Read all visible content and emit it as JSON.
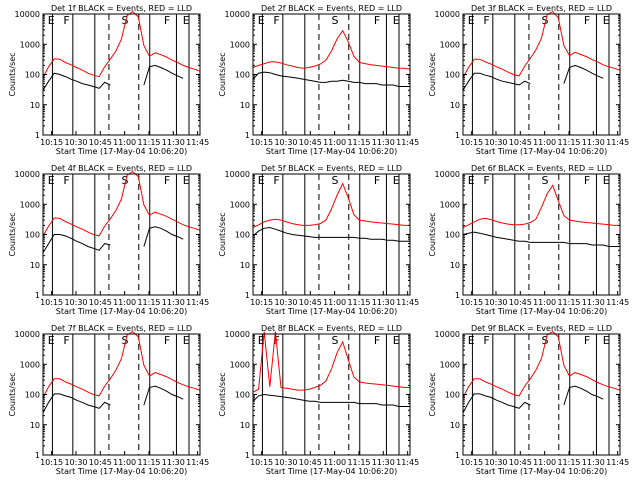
{
  "chart_data": {
    "type": "line",
    "grid_of_panels": "3x3",
    "shared": {
      "xlabel": "Start Time (17-May-04 10:06:20)",
      "ylabel": "Counts/sec",
      "xticks": [
        "10:15",
        "10:30",
        "10:45",
        "11:00",
        "11:15",
        "11:30",
        "11:45"
      ],
      "yticks": [
        "1",
        "10",
        "100",
        "1000",
        "10000"
      ],
      "ylim": [
        1,
        10000
      ],
      "y_scale": "log",
      "x_range_minutes_after_10": [
        8,
        47
      ],
      "series_colors": {
        "events": "#000000",
        "lld": "#ff0000"
      },
      "vertical_lines_solid_minutes": [
        13,
        23,
        42
      ],
      "vertical_lines_dashed_minutes": [
        30,
        35
      ],
      "vertical_lines_solid_late_minutes": [
        40
      ],
      "segment_letters": [
        "E",
        "F",
        "S",
        "F",
        "E"
      ]
    },
    "panels": [
      {
        "title": "Det 1f BLACK = Events, RED = LLD",
        "events_x": [
          "10:10",
          "10:14",
          "10:17",
          "10:21",
          "10:25",
          "10:28",
          "10:31",
          "10:34",
          "10:37",
          "10:40",
          "10:43",
          "10:45",
          "10:48",
          "10:51",
          "10:54",
          "10:57",
          "11:00",
          "11:03",
          "11:06",
          "11:09",
          "11:12",
          "11:15",
          "11:18",
          "11:21",
          "11:24",
          "11:27",
          "11:30",
          "11:33",
          "11:36"
        ],
        "events": [
          30,
          60,
          110,
          100,
          85,
          70,
          60,
          50,
          45,
          40,
          35,
          55,
          45,
          0,
          0,
          0,
          0,
          0,
          45,
          180,
          200,
          170,
          140,
          110,
          90,
          75,
          0,
          0,
          0
        ],
        "lld": [
          80,
          180,
          330,
          320,
          250,
          210,
          170,
          140,
          110,
          95,
          85,
          180,
          320,
          600,
          1500,
          9000,
          12000,
          8000,
          900,
          400,
          520,
          450,
          380,
          300,
          250,
          200,
          170,
          150,
          130
        ]
      },
      {
        "title": "Det 2f BLACK = Events, RED = LLD",
        "events": [
          70,
          110,
          120,
          115,
          100,
          90,
          85,
          80,
          75,
          70,
          65,
          60,
          55,
          55,
          60,
          60,
          65,
          60,
          55,
          55,
          50,
          50,
          50,
          45,
          45,
          45,
          40,
          40,
          40
        ],
        "lld": [
          170,
          200,
          230,
          260,
          260,
          240,
          210,
          190,
          170,
          160,
          170,
          190,
          220,
          300,
          600,
          1500,
          2800,
          1200,
          400,
          250,
          230,
          210,
          200,
          190,
          180,
          170,
          160,
          160,
          150
        ]
      },
      {
        "title": "Det 3f BLACK = Events, RED = LLD",
        "events": [
          30,
          60,
          110,
          110,
          95,
          85,
          70,
          60,
          55,
          50,
          45,
          60,
          50,
          0,
          0,
          0,
          0,
          0,
          50,
          170,
          200,
          170,
          140,
          110,
          90,
          75,
          0,
          0,
          0
        ],
        "lld": [
          80,
          170,
          320,
          320,
          260,
          220,
          180,
          150,
          120,
          100,
          90,
          190,
          340,
          650,
          1600,
          9500,
          12000,
          7500,
          900,
          420,
          540,
          460,
          390,
          310,
          260,
          210,
          180,
          160,
          140
        ]
      },
      {
        "title": "Det 4f BLACK = Events, RED = LLD",
        "events": [
          25,
          50,
          100,
          100,
          90,
          75,
          60,
          50,
          40,
          35,
          30,
          50,
          45,
          0,
          0,
          0,
          0,
          0,
          40,
          160,
          180,
          160,
          130,
          100,
          85,
          70,
          0,
          0,
          0
        ],
        "lld": [
          90,
          190,
          350,
          340,
          270,
          220,
          180,
          150,
          120,
          100,
          90,
          190,
          330,
          620,
          1500,
          9200,
          12000,
          8200,
          950,
          430,
          550,
          470,
          400,
          320,
          260,
          210,
          180,
          160,
          140
        ]
      },
      {
        "title": "Det 5f BLACK = Events, RED = LLD",
        "events": [
          90,
          130,
          160,
          170,
          150,
          130,
          110,
          100,
          95,
          90,
          85,
          80,
          80,
          80,
          80,
          80,
          80,
          80,
          80,
          75,
          75,
          70,
          70,
          70,
          65,
          65,
          60,
          60,
          60
        ],
        "lld": [
          170,
          210,
          260,
          300,
          320,
          300,
          260,
          230,
          210,
          200,
          200,
          210,
          230,
          300,
          700,
          2000,
          4800,
          1600,
          450,
          300,
          280,
          260,
          250,
          240,
          230,
          220,
          210,
          200,
          200
        ]
      },
      {
        "title": "Det 6f BLACK = Events, RED = LLD",
        "events": [
          100,
          110,
          120,
          110,
          100,
          90,
          80,
          75,
          70,
          65,
          60,
          60,
          55,
          55,
          55,
          55,
          55,
          55,
          55,
          50,
          50,
          50,
          50,
          45,
          45,
          45,
          40,
          40,
          40
        ],
        "lld": [
          170,
          210,
          260,
          320,
          340,
          310,
          270,
          240,
          220,
          210,
          210,
          220,
          250,
          320,
          800,
          2200,
          4200,
          1300,
          420,
          300,
          280,
          260,
          250,
          240,
          230,
          220,
          210,
          200,
          200
        ]
      },
      {
        "title": "Det 7f BLACK = Events, RED = LLD",
        "events": [
          25,
          55,
          105,
          105,
          90,
          80,
          65,
          55,
          45,
          40,
          35,
          55,
          45,
          0,
          0,
          0,
          0,
          0,
          45,
          170,
          190,
          160,
          130,
          100,
          85,
          70,
          0,
          0,
          0
        ],
        "lld": [
          80,
          180,
          330,
          330,
          260,
          220,
          180,
          150,
          120,
          100,
          90,
          190,
          330,
          640,
          1550,
          9300,
          12000,
          8000,
          920,
          410,
          530,
          460,
          390,
          310,
          250,
          210,
          180,
          160,
          140
        ]
      },
      {
        "title": "Det 8f BLACK = Events, RED = LLD",
        "events": [
          60,
          90,
          100,
          95,
          90,
          85,
          80,
          75,
          70,
          65,
          60,
          60,
          55,
          55,
          55,
          55,
          55,
          55,
          55,
          50,
          50,
          50,
          50,
          45,
          45,
          45,
          40,
          40,
          40
        ],
        "lld": [
          120,
          150,
          12000,
          180,
          12000,
          170,
          160,
          150,
          140,
          140,
          150,
          170,
          200,
          280,
          700,
          2400,
          5500,
          1400,
          380,
          260,
          240,
          230,
          220,
          210,
          200,
          190,
          180,
          170,
          170
        ]
      },
      {
        "title": "Det 9f BLACK = Events, RED = LLD",
        "events": [
          25,
          55,
          105,
          105,
          90,
          80,
          65,
          55,
          45,
          40,
          35,
          55,
          45,
          0,
          0,
          0,
          0,
          0,
          45,
          170,
          190,
          160,
          130,
          100,
          85,
          70,
          0,
          0,
          0
        ],
        "lld": [
          80,
          180,
          330,
          330,
          260,
          220,
          180,
          150,
          120,
          100,
          90,
          190,
          330,
          640,
          1550,
          9300,
          12000,
          8000,
          920,
          410,
          530,
          460,
          390,
          310,
          250,
          210,
          180,
          160,
          140
        ]
      }
    ]
  }
}
